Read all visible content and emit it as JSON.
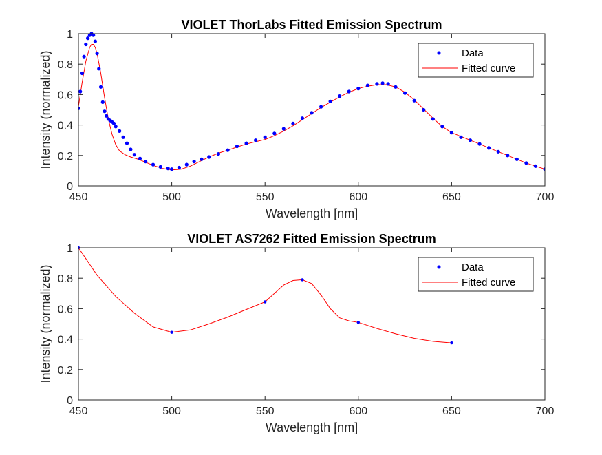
{
  "figure": {
    "background": "#ffffff"
  },
  "chart_data": [
    {
      "type": "line",
      "title": "VIOLET ThorLabs Fitted Emission Spectrum",
      "xlabel": "Wavelength [nm]",
      "ylabel": "Intensity (normalized)",
      "xlim": [
        450,
        700
      ],
      "ylim": [
        0,
        1
      ],
      "xticks": [
        450,
        500,
        550,
        600,
        650,
        700
      ],
      "yticks": [
        0,
        0.2,
        0.4,
        0.6,
        0.8,
        1
      ],
      "xtick_labels": [
        "450",
        "500",
        "550",
        "600",
        "650",
        "700"
      ],
      "ytick_labels": [
        "0",
        "0.2",
        "0.4",
        "0.6",
        "0.8",
        "1"
      ],
      "grid": false,
      "legend_position": "top-right",
      "series": [
        {
          "name": "Data",
          "style": "dots",
          "color": "#0000ff",
          "x": [
            450,
            451,
            452,
            453,
            454,
            455,
            456,
            457,
            458,
            459,
            460,
            461,
            462,
            463,
            464,
            465,
            466,
            467,
            468,
            469,
            470,
            472,
            474,
            476,
            478,
            480,
            483,
            486,
            490,
            494,
            498,
            500,
            504,
            508,
            512,
            516,
            520,
            525,
            530,
            535,
            540,
            545,
            550,
            555,
            560,
            565,
            570,
            575,
            580,
            585,
            590,
            595,
            600,
            605,
            610,
            613,
            616,
            620,
            625,
            630,
            635,
            640,
            645,
            650,
            655,
            660,
            665,
            670,
            675,
            680,
            685,
            690,
            695,
            700
          ],
          "values": [
            0.51,
            0.62,
            0.74,
            0.85,
            0.93,
            0.97,
            0.99,
            1.0,
            0.99,
            0.95,
            0.87,
            0.77,
            0.65,
            0.55,
            0.49,
            0.46,
            0.44,
            0.43,
            0.42,
            0.41,
            0.39,
            0.36,
            0.32,
            0.28,
            0.24,
            0.205,
            0.18,
            0.16,
            0.14,
            0.125,
            0.115,
            0.11,
            0.12,
            0.14,
            0.16,
            0.175,
            0.19,
            0.21,
            0.235,
            0.26,
            0.28,
            0.3,
            0.32,
            0.345,
            0.375,
            0.41,
            0.445,
            0.48,
            0.52,
            0.555,
            0.59,
            0.62,
            0.64,
            0.66,
            0.67,
            0.675,
            0.67,
            0.65,
            0.61,
            0.56,
            0.5,
            0.44,
            0.39,
            0.35,
            0.32,
            0.3,
            0.275,
            0.25,
            0.225,
            0.2,
            0.175,
            0.15,
            0.13,
            0.11
          ]
        },
        {
          "name": "Fitted curve",
          "style": "line",
          "color": "#ff0000",
          "x": [
            450,
            452,
            454,
            456,
            457,
            458,
            459,
            460,
            462,
            464,
            466,
            468,
            470,
            472,
            475,
            478,
            482,
            486,
            490,
            495,
            500,
            505,
            510,
            515,
            520,
            525,
            530,
            535,
            540,
            545,
            550,
            555,
            560,
            565,
            570,
            575,
            580,
            585,
            590,
            595,
            600,
            605,
            610,
            615,
            620,
            625,
            630,
            635,
            640,
            645,
            650,
            655,
            660,
            665,
            670,
            675,
            680,
            685,
            690,
            695,
            700
          ],
          "values": [
            0.52,
            0.68,
            0.82,
            0.91,
            0.93,
            0.93,
            0.91,
            0.87,
            0.74,
            0.58,
            0.44,
            0.34,
            0.27,
            0.23,
            0.205,
            0.19,
            0.175,
            0.155,
            0.135,
            0.115,
            0.105,
            0.11,
            0.13,
            0.16,
            0.19,
            0.215,
            0.235,
            0.255,
            0.275,
            0.29,
            0.305,
            0.33,
            0.36,
            0.395,
            0.435,
            0.475,
            0.515,
            0.55,
            0.585,
            0.615,
            0.64,
            0.655,
            0.665,
            0.665,
            0.65,
            0.615,
            0.565,
            0.505,
            0.445,
            0.39,
            0.35,
            0.325,
            0.3,
            0.275,
            0.25,
            0.225,
            0.2,
            0.175,
            0.15,
            0.13,
            0.11
          ]
        }
      ]
    },
    {
      "type": "line",
      "title": "VIOLET AS7262 Fitted Emission Spectrum",
      "xlabel": "Wavelength [nm]",
      "ylabel": "Intensity (normalized)",
      "xlim": [
        450,
        700
      ],
      "ylim": [
        0,
        1
      ],
      "xticks": [
        450,
        500,
        550,
        600,
        650,
        700
      ],
      "yticks": [
        0,
        0.2,
        0.4,
        0.6,
        0.8,
        1
      ],
      "xtick_labels": [
        "450",
        "500",
        "550",
        "600",
        "650",
        "700"
      ],
      "ytick_labels": [
        "0",
        "0.2",
        "0.4",
        "0.6",
        "0.8",
        "1"
      ],
      "grid": false,
      "legend_position": "top-right",
      "series": [
        {
          "name": "Data",
          "style": "dots",
          "color": "#0000ff",
          "x": [
            450,
            500,
            550,
            570,
            600,
            650
          ],
          "values": [
            1.0,
            0.445,
            0.645,
            0.79,
            0.51,
            0.375
          ]
        },
        {
          "name": "Fitted curve",
          "style": "line",
          "color": "#ff0000",
          "x": [
            450,
            460,
            470,
            480,
            490,
            500,
            510,
            520,
            530,
            540,
            550,
            555,
            560,
            565,
            570,
            575,
            580,
            585,
            590,
            595,
            600,
            610,
            620,
            630,
            640,
            650
          ],
          "values": [
            1.0,
            0.82,
            0.68,
            0.57,
            0.48,
            0.445,
            0.46,
            0.5,
            0.545,
            0.595,
            0.645,
            0.7,
            0.755,
            0.785,
            0.79,
            0.765,
            0.69,
            0.6,
            0.54,
            0.52,
            0.51,
            0.47,
            0.435,
            0.405,
            0.385,
            0.375
          ]
        }
      ]
    }
  ]
}
